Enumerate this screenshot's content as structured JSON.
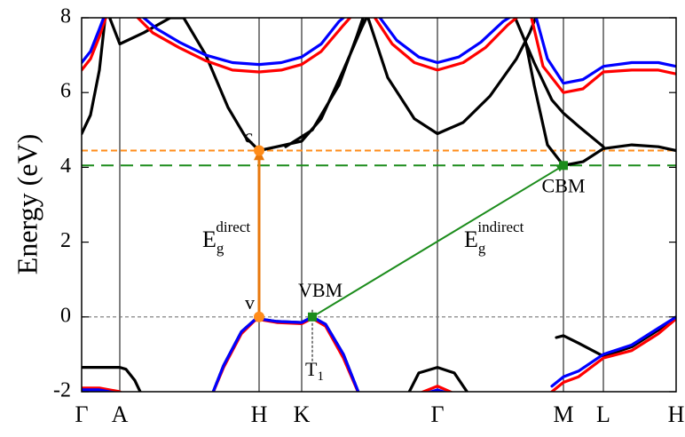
{
  "chart_data": {
    "type": "line",
    "ylabel": "Energy (eV)",
    "xlim": [
      0,
      6.7
    ],
    "ylim": [
      -2,
      8
    ],
    "yticks": [
      -2,
      0,
      2,
      4,
      6,
      8
    ],
    "xticks": [
      {
        "value": 0,
        "label": "Γ"
      },
      {
        "value": 0.43,
        "label": "A"
      },
      {
        "value": 2.0,
        "label": "H"
      },
      {
        "value": 2.48,
        "label": "K"
      },
      {
        "value": 4.01,
        "label": "Γ"
      },
      {
        "value": 5.43,
        "label": "M"
      },
      {
        "value": 5.88,
        "label": "L"
      },
      {
        "value": 6.7,
        "label": "H"
      }
    ],
    "grid": true,
    "series": [
      {
        "color": "#000000",
        "x": [
          0,
          0.1,
          0.2,
          0.27,
          null,
          0.3,
          0.43,
          0.7,
          1.0,
          1.15,
          1.4,
          1.65,
          1.85,
          2.0,
          2.2,
          2.48,
          2.7,
          2.95,
          3.15,
          3.25,
          null,
          2.3,
          2.6,
          2.9,
          3.1,
          3.2,
          null,
          3.2,
          3.45,
          3.75,
          4.01,
          4.3,
          4.6,
          4.9,
          5.05,
          5.15,
          null,
          4.85,
          5.1,
          5.3,
          5.43,
          5.6,
          5.88,
          null,
          5.0,
          5.1,
          5.25,
          5.43,
          5.65,
          5.88,
          6.2,
          6.5,
          6.7,
          null,
          0,
          0.43,
          0.5,
          0.6,
          0.7,
          null,
          1.45,
          1.6,
          1.8,
          1.95,
          2.0,
          2.2,
          2.48,
          2.6,
          2.75,
          2.95,
          3.15,
          null,
          3.65,
          3.8,
          4.01,
          4.2,
          4.4,
          null,
          5.35,
          5.43,
          5.6,
          5.88,
          6.2,
          6.5,
          6.7
        ],
        "values": [
          4.9,
          5.4,
          6.6,
          8.1,
          null,
          8.1,
          7.3,
          7.6,
          8.0,
          8.0,
          7.0,
          5.6,
          4.8,
          4.45,
          4.55,
          4.7,
          5.3,
          6.6,
          7.7,
          8.2,
          null,
          4.55,
          5.0,
          6.2,
          7.5,
          8.2,
          null,
          8.2,
          6.4,
          5.3,
          4.9,
          5.2,
          5.9,
          6.9,
          7.6,
          8.2,
          null,
          8.2,
          6.8,
          5.8,
          5.45,
          5.1,
          4.55,
          null,
          7.4,
          6.2,
          4.6,
          4.05,
          4.15,
          4.5,
          4.6,
          4.55,
          4.45,
          null,
          -1.35,
          -1.35,
          -1.4,
          -1.7,
          -2.2,
          null,
          -2.2,
          -1.3,
          -0.4,
          -0.08,
          -0.05,
          -0.12,
          -0.15,
          0,
          -0.2,
          -1.0,
          -2.2,
          null,
          -2.2,
          -1.5,
          -1.35,
          -1.5,
          -2.2,
          null,
          -0.55,
          -0.5,
          -0.7,
          -1.05,
          -0.8,
          -0.35,
          0
        ]
      },
      {
        "color": "#ff0000",
        "x": [
          0,
          0.1,
          0.2,
          0.3,
          null,
          0.55,
          0.8,
          1.1,
          1.4,
          1.7,
          2.0,
          2.25,
          2.48,
          2.7,
          2.95,
          3.1,
          null,
          3.25,
          3.5,
          3.75,
          4.01,
          4.3,
          4.55,
          4.8,
          5.0,
          null,
          5.05,
          5.2,
          5.43,
          5.65,
          5.88,
          6.2,
          6.5,
          6.7,
          null,
          0,
          0.2,
          0.43,
          0.55,
          null,
          1.45,
          1.6,
          1.8,
          1.95,
          2.0,
          2.2,
          2.48,
          2.6,
          2.75,
          2.95,
          3.15,
          null,
          3.8,
          4.01,
          4.2,
          null,
          5.3,
          5.43,
          5.6,
          5.88,
          6.2,
          6.5,
          6.7
        ],
        "values": [
          6.6,
          6.9,
          7.5,
          8.2,
          null,
          8.2,
          7.6,
          7.2,
          6.85,
          6.6,
          6.55,
          6.6,
          6.75,
          7.1,
          7.8,
          8.2,
          null,
          8.2,
          7.3,
          6.8,
          6.6,
          6.8,
          7.2,
          7.8,
          8.2,
          null,
          8.2,
          6.7,
          6.0,
          6.1,
          6.55,
          6.6,
          6.6,
          6.5,
          null,
          -1.9,
          -1.9,
          -2.0,
          -2.2,
          null,
          -2.2,
          -1.35,
          -0.45,
          -0.1,
          -0.07,
          -0.15,
          -0.18,
          -0.04,
          -0.25,
          -1.1,
          -2.2,
          null,
          -2.05,
          -1.85,
          -2.05,
          null,
          -2.0,
          -1.75,
          -1.6,
          -1.1,
          -0.9,
          -0.45,
          -0.05
        ]
      },
      {
        "color": "#0000ff",
        "x": [
          0,
          0.1,
          0.2,
          0.28,
          null,
          0.6,
          0.85,
          1.1,
          1.4,
          1.7,
          2.0,
          2.25,
          2.48,
          2.7,
          2.9,
          3.05,
          null,
          3.3,
          3.55,
          3.8,
          4.01,
          4.25,
          4.5,
          4.75,
          4.95,
          null,
          5.1,
          5.25,
          5.43,
          5.65,
          5.88,
          6.2,
          6.5,
          6.7,
          null,
          0,
          0.2,
          0.43,
          0.55,
          null,
          1.45,
          1.6,
          1.8,
          1.95,
          2.0,
          2.2,
          2.48,
          2.6,
          2.75,
          2.95,
          3.15,
          null,
          3.8,
          4.01,
          4.2,
          null,
          5.3,
          5.43,
          5.6,
          5.88,
          6.2,
          6.5,
          6.7
        ],
        "values": [
          6.8,
          7.1,
          7.7,
          8.2,
          null,
          8.2,
          7.7,
          7.35,
          7.0,
          6.8,
          6.75,
          6.8,
          6.95,
          7.3,
          7.9,
          8.2,
          null,
          8.2,
          7.4,
          6.95,
          6.8,
          6.95,
          7.35,
          7.9,
          8.2,
          null,
          8.2,
          6.9,
          6.25,
          6.35,
          6.7,
          6.8,
          6.8,
          6.7,
          null,
          -1.95,
          -1.95,
          -2.05,
          -2.2,
          null,
          -2.2,
          -1.3,
          -0.4,
          -0.08,
          -0.05,
          -0.12,
          -0.15,
          0,
          -0.2,
          -1.0,
          -2.2,
          null,
          -2.1,
          -1.95,
          -2.1,
          null,
          -1.85,
          -1.6,
          -1.45,
          -1.0,
          -0.75,
          -0.3,
          0
        ]
      }
    ],
    "hlines": [
      {
        "y": 4.45,
        "color": "#ff8c1a"
      },
      {
        "y": 4.05,
        "color": "#1c8c1c"
      },
      {
        "y": 0,
        "color": "#777777"
      }
    ],
    "arrows": [
      {
        "from": [
          2.0,
          0
        ],
        "to": [
          2.0,
          4.45
        ],
        "color": "#e8780c"
      },
      {
        "from": [
          2.6,
          0
        ],
        "to": [
          5.43,
          4.05
        ],
        "color": "#1c8c1c"
      }
    ],
    "points": [
      {
        "label": "c",
        "x": 2.0,
        "y": 4.45,
        "color": "#ff8c1a",
        "marker": "circle"
      },
      {
        "label": "v",
        "x": 2.0,
        "y": 0,
        "color": "#ff8c1a",
        "marker": "circle"
      },
      {
        "label": "VBM",
        "x": 2.6,
        "y": 0,
        "color": "#1c8c1c",
        "marker": "square"
      },
      {
        "label": "CBM",
        "x": 5.43,
        "y": 4.05,
        "color": "#1c8c1c",
        "marker": "square"
      }
    ],
    "gap_labels": [
      {
        "symbol": "E",
        "sub": "g",
        "sup": "direct"
      },
      {
        "symbol": "E",
        "sub": "g",
        "sup": "indirect"
      }
    ],
    "t_label": {
      "symbol": "T",
      "sub": "1"
    }
  }
}
